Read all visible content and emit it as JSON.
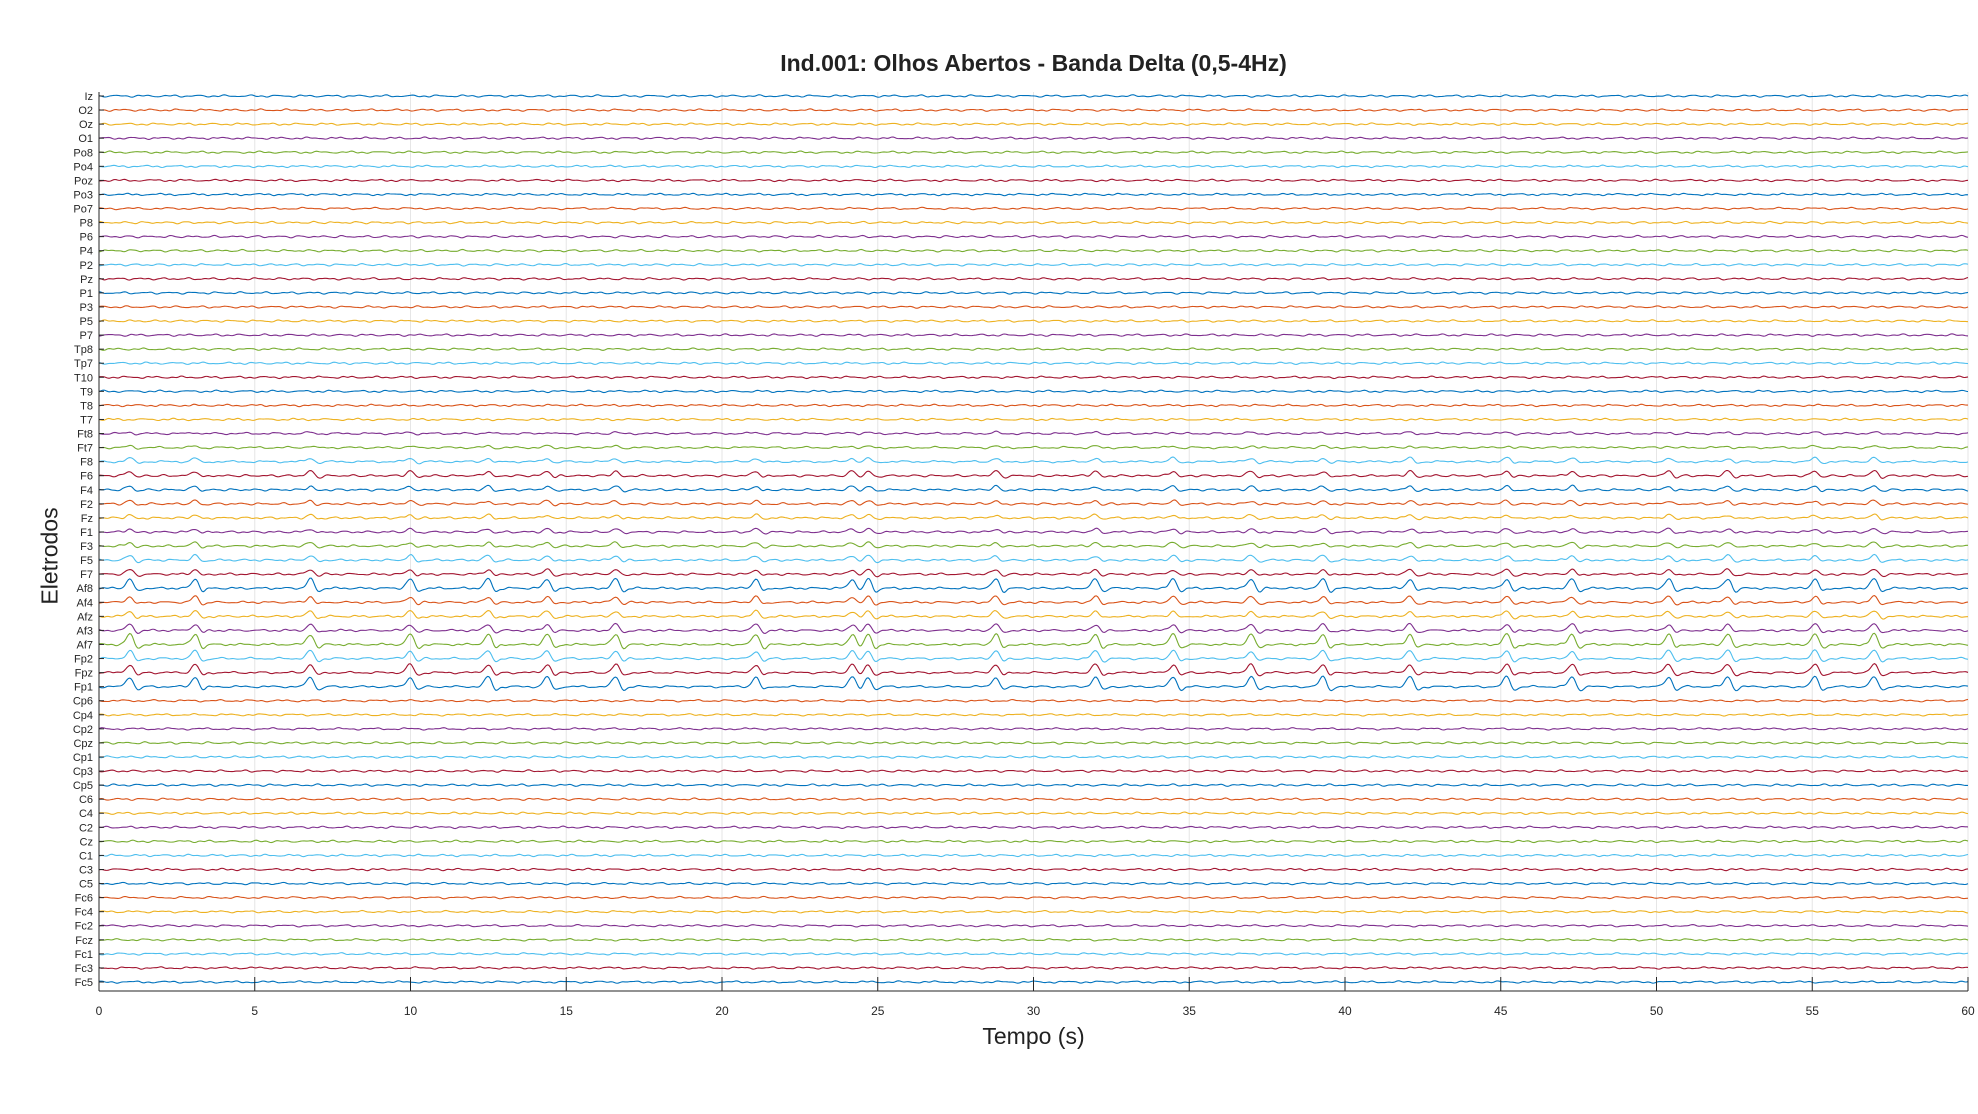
{
  "chart_data": {
    "type": "line",
    "title": "Ind.001: Olhos Abertos - Banda Delta (0,5-4Hz)",
    "xlabel": "Tempo (s)",
    "ylabel": "Eletrodos",
    "xlim": [
      0,
      60
    ],
    "xticks": [
      0,
      5,
      10,
      15,
      20,
      25,
      30,
      35,
      40,
      45,
      50,
      55,
      60
    ],
    "grid": true,
    "legend": "none",
    "channels": [
      "Iz",
      "O2",
      "Oz",
      "O1",
      "Po8",
      "Po4",
      "Poz",
      "Po3",
      "Po7",
      "P8",
      "P6",
      "P4",
      "P2",
      "Pz",
      "P1",
      "P3",
      "P5",
      "P7",
      "Tp8",
      "Tp7",
      "T10",
      "T9",
      "T8",
      "T7",
      "Ft8",
      "Ft7",
      "F8",
      "F6",
      "F4",
      "F2",
      "Fz",
      "F1",
      "F3",
      "F5",
      "F7",
      "Af8",
      "Af4",
      "Afz",
      "Af3",
      "Af7",
      "Fp2",
      "Fpz",
      "Fp1",
      "Cp6",
      "Cp4",
      "Cp2",
      "Cpz",
      "Cp1",
      "Cp3",
      "Cp5",
      "C6",
      "C4",
      "C2",
      "Cz",
      "C1",
      "C3",
      "C5",
      "Fc6",
      "Fc4",
      "Fc2",
      "Fcz",
      "Fc1",
      "Fc3",
      "Fc5"
    ],
    "series_colors": [
      "#0072BD",
      "#D95319",
      "#EDB120",
      "#7E2F8E",
      "#77AC30",
      "#4DBEEE",
      "#A2142F"
    ],
    "artifact_times": [
      1.0,
      3.1,
      6.8,
      10.0,
      12.5,
      14.4,
      16.6,
      21.1,
      24.2,
      24.7,
      28.8,
      32.0,
      34.5,
      37.0,
      39.3,
      42.1,
      45.2,
      47.3,
      50.4,
      52.3,
      55.1,
      57.0
    ],
    "artifact_amplitude": {
      "Af7": 1.0,
      "Fp1": 0.95,
      "Af8": 0.9,
      "Fpz": 0.8,
      "Fp2": 0.75,
      "Af3": 0.6,
      "Af4": 0.55,
      "Afz": 0.5,
      "F5": 0.45,
      "F7": 0.45,
      "F3": 0.35,
      "F1": 0.3,
      "Fz": 0.3,
      "F2": 0.3,
      "F4": 0.35,
      "F6": 0.45,
      "F8": 0.35,
      "Ft7": 0.15,
      "Ft8": 0.12
    },
    "background_amplitude": 0.12
  }
}
